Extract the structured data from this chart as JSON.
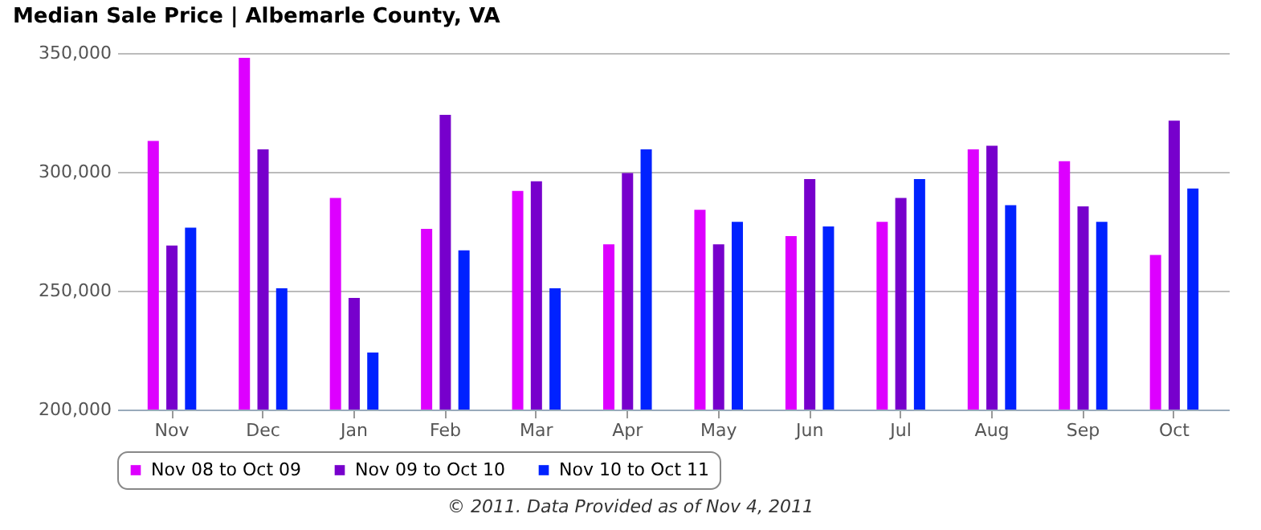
{
  "chart_data": {
    "type": "bar",
    "title": "Median Sale Price | Albemarle County, VA",
    "categories": [
      "Nov",
      "Dec",
      "Jan",
      "Feb",
      "Mar",
      "Apr",
      "May",
      "Jun",
      "Jul",
      "Aug",
      "Sep",
      "Oct"
    ],
    "series": [
      {
        "name": "Nov 08 to Oct 09",
        "color": "#dd00ff",
        "values": [
          313000,
          348000,
          289000,
          276000,
          292000,
          269500,
          284000,
          273000,
          279000,
          309500,
          304500,
          265000
        ]
      },
      {
        "name": "Nov 09 to Oct 10",
        "color": "#7700cc",
        "values": [
          269000,
          309500,
          247000,
          324000,
          296000,
          299500,
          269500,
          297000,
          289000,
          311000,
          285500,
          321500
        ]
      },
      {
        "name": "Nov 10 to Oct 11",
        "color": "#0022ff",
        "values": [
          276500,
          251000,
          224000,
          267000,
          251000,
          309500,
          279000,
          277000,
          297000,
          286000,
          279000,
          293000
        ]
      }
    ],
    "ylim": [
      200000,
      350000
    ],
    "yticks": [
      {
        "value": 200000,
        "label": "200,000"
      },
      {
        "value": 250000,
        "label": "250,000"
      },
      {
        "value": 300000,
        "label": "300,000"
      },
      {
        "value": 350000,
        "label": "350,000"
      }
    ],
    "grid": "y",
    "legend": "bottom",
    "annotations": [
      "© 2011. Data Provided as of Nov 4, 2011"
    ]
  }
}
